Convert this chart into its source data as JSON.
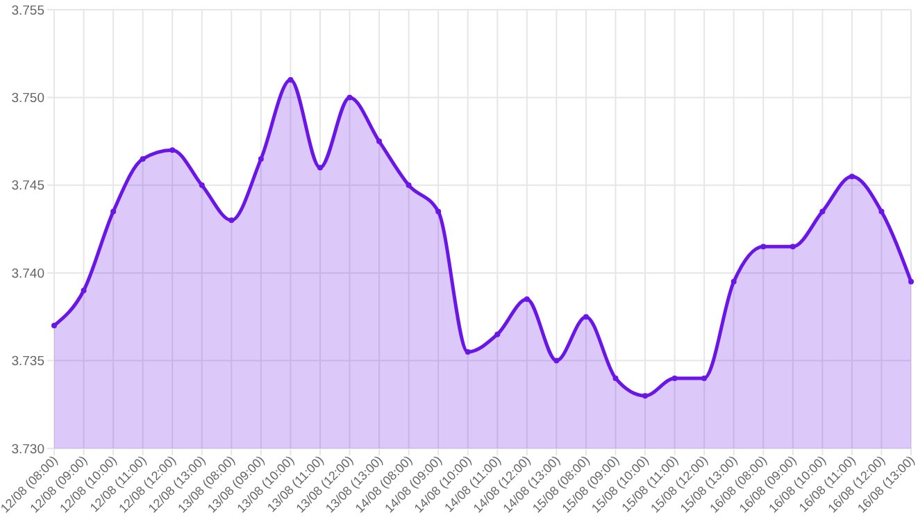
{
  "chart_data": {
    "type": "area",
    "categories": [
      "12/08 (08:00)",
      "12/08 (09:00)",
      "12/08 (10:00)",
      "12/08 (11:00)",
      "12/08 (12:00)",
      "12/08 (13:00)",
      "13/08 (08:00)",
      "13/08 (09:00)",
      "13/08 (10:00)",
      "13/08 (11:00)",
      "13/08 (12:00)",
      "13/08 (13:00)",
      "14/08 (08:00)",
      "14/08 (09:00)",
      "14/08 (10:00)",
      "14/08 (11:00)",
      "14/08 (12:00)",
      "14/08 (13:00)",
      "15/08 (08:00)",
      "15/08 (09:00)",
      "15/08 (10:00)",
      "15/08 (11:00)",
      "15/08 (12:00)",
      "15/08 (13:00)",
      "16/08 (08:00)",
      "16/08 (09:00)",
      "16/08 (10:00)",
      "16/08 (11:00)",
      "16/08 (12:00)",
      "16/08 (13:00)"
    ],
    "series": [
      {
        "color": "#6a16e6",
        "values": [
          3.737,
          3.739,
          3.7435,
          3.7465,
          3.747,
          3.745,
          3.743,
          3.7465,
          3.751,
          3.746,
          3.75,
          3.7475,
          3.745,
          3.7435,
          3.7355,
          3.7365,
          3.7385,
          3.735,
          3.7375,
          3.734,
          3.733,
          3.734,
          3.734,
          3.7395,
          3.7415,
          3.7415,
          3.7435,
          3.7455,
          3.7435,
          3.7395
        ]
      }
    ],
    "ylim": [
      3.73,
      3.755
    ],
    "yticks": [
      {
        "value": 3.73,
        "label": "3.730"
      },
      {
        "value": 3.735,
        "label": "3.735"
      },
      {
        "value": 3.74,
        "label": "3.740"
      },
      {
        "value": 3.745,
        "label": "3.745"
      },
      {
        "value": 3.75,
        "label": "3.750"
      },
      {
        "value": 3.755,
        "label": "3.755"
      }
    ],
    "grid": true,
    "marker": "circle"
  }
}
